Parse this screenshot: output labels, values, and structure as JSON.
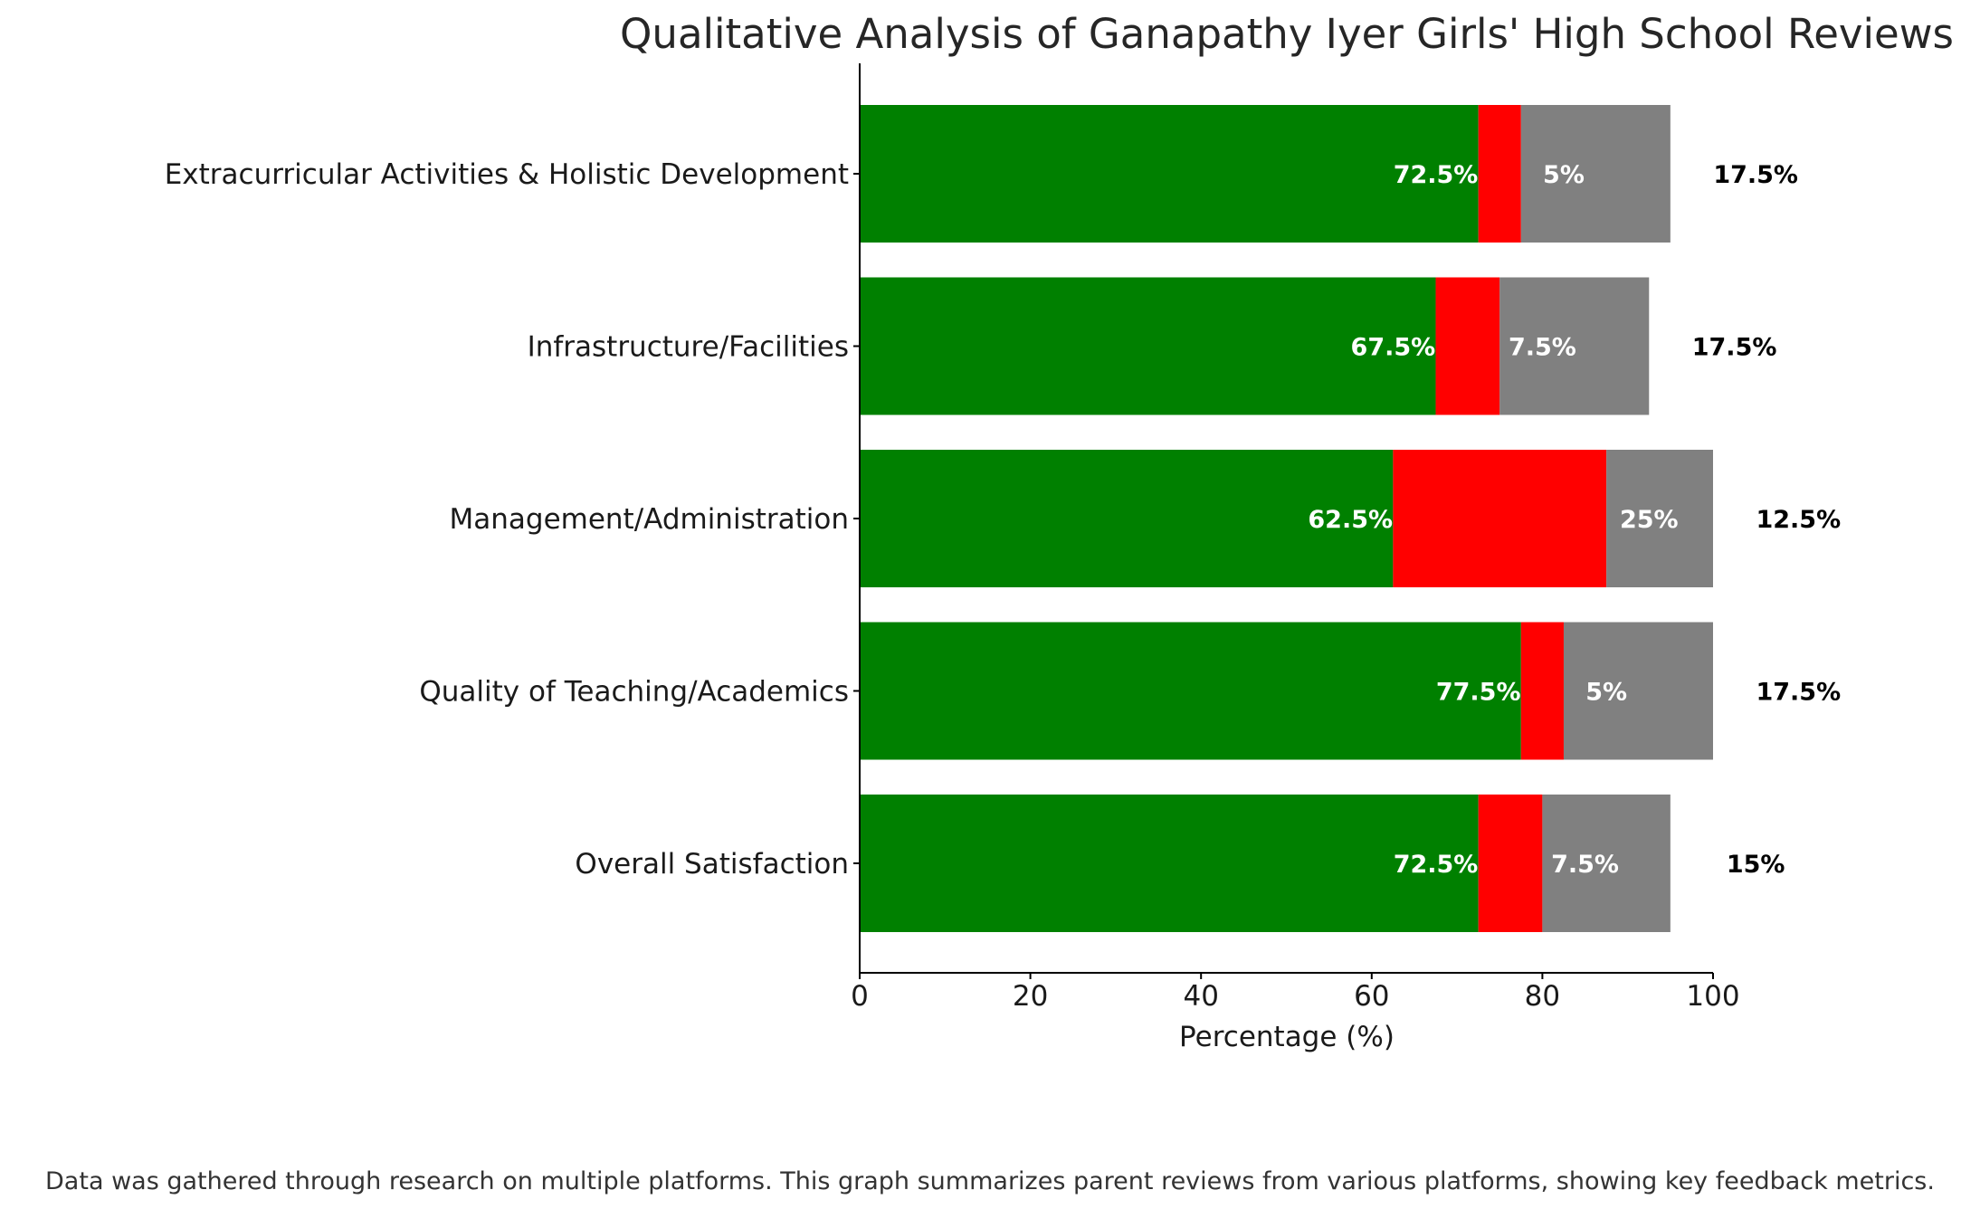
{
  "chart_data": {
    "type": "bar",
    "orientation": "horizontal",
    "stacked": true,
    "title": "Qualitative Analysis of Ganapathy Iyer Girls' High School Reviews",
    "xlabel": "Percentage (%)",
    "ylabel": "",
    "xlim": [
      0,
      100
    ],
    "xticks": [
      "0",
      "20",
      "40",
      "60",
      "80",
      "100"
    ],
    "grid": false,
    "categories": [
      "Extracurricular Activities & Holistic Development",
      "Infrastructure/Facilities",
      "Management/Administration",
      "Quality of Teaching/Academics",
      "Overall Satisfaction"
    ],
    "series": [
      {
        "color": "#008000",
        "values": [
          72.5,
          67.5,
          62.5,
          77.5,
          72.5
        ],
        "labels": [
          "72.5%",
          "67.5%",
          "62.5%",
          "77.5%",
          "72.5%"
        ]
      },
      {
        "color": "#ff0000",
        "values": [
          5,
          7.5,
          25,
          5,
          7.5
        ],
        "labels": [
          "5%",
          "7.5%",
          "25%",
          "5%",
          "7.5%"
        ]
      },
      {
        "color": "#808080",
        "values": [
          17.5,
          17.5,
          12.5,
          17.5,
          15
        ],
        "labels": [
          "17.5%",
          "17.5%",
          "12.5%",
          "17.5%",
          "15%"
        ]
      }
    ]
  },
  "footnote": "Data was gathered through research on multiple platforms. This graph summarizes parent reviews from various platforms, showing key feedback metrics."
}
